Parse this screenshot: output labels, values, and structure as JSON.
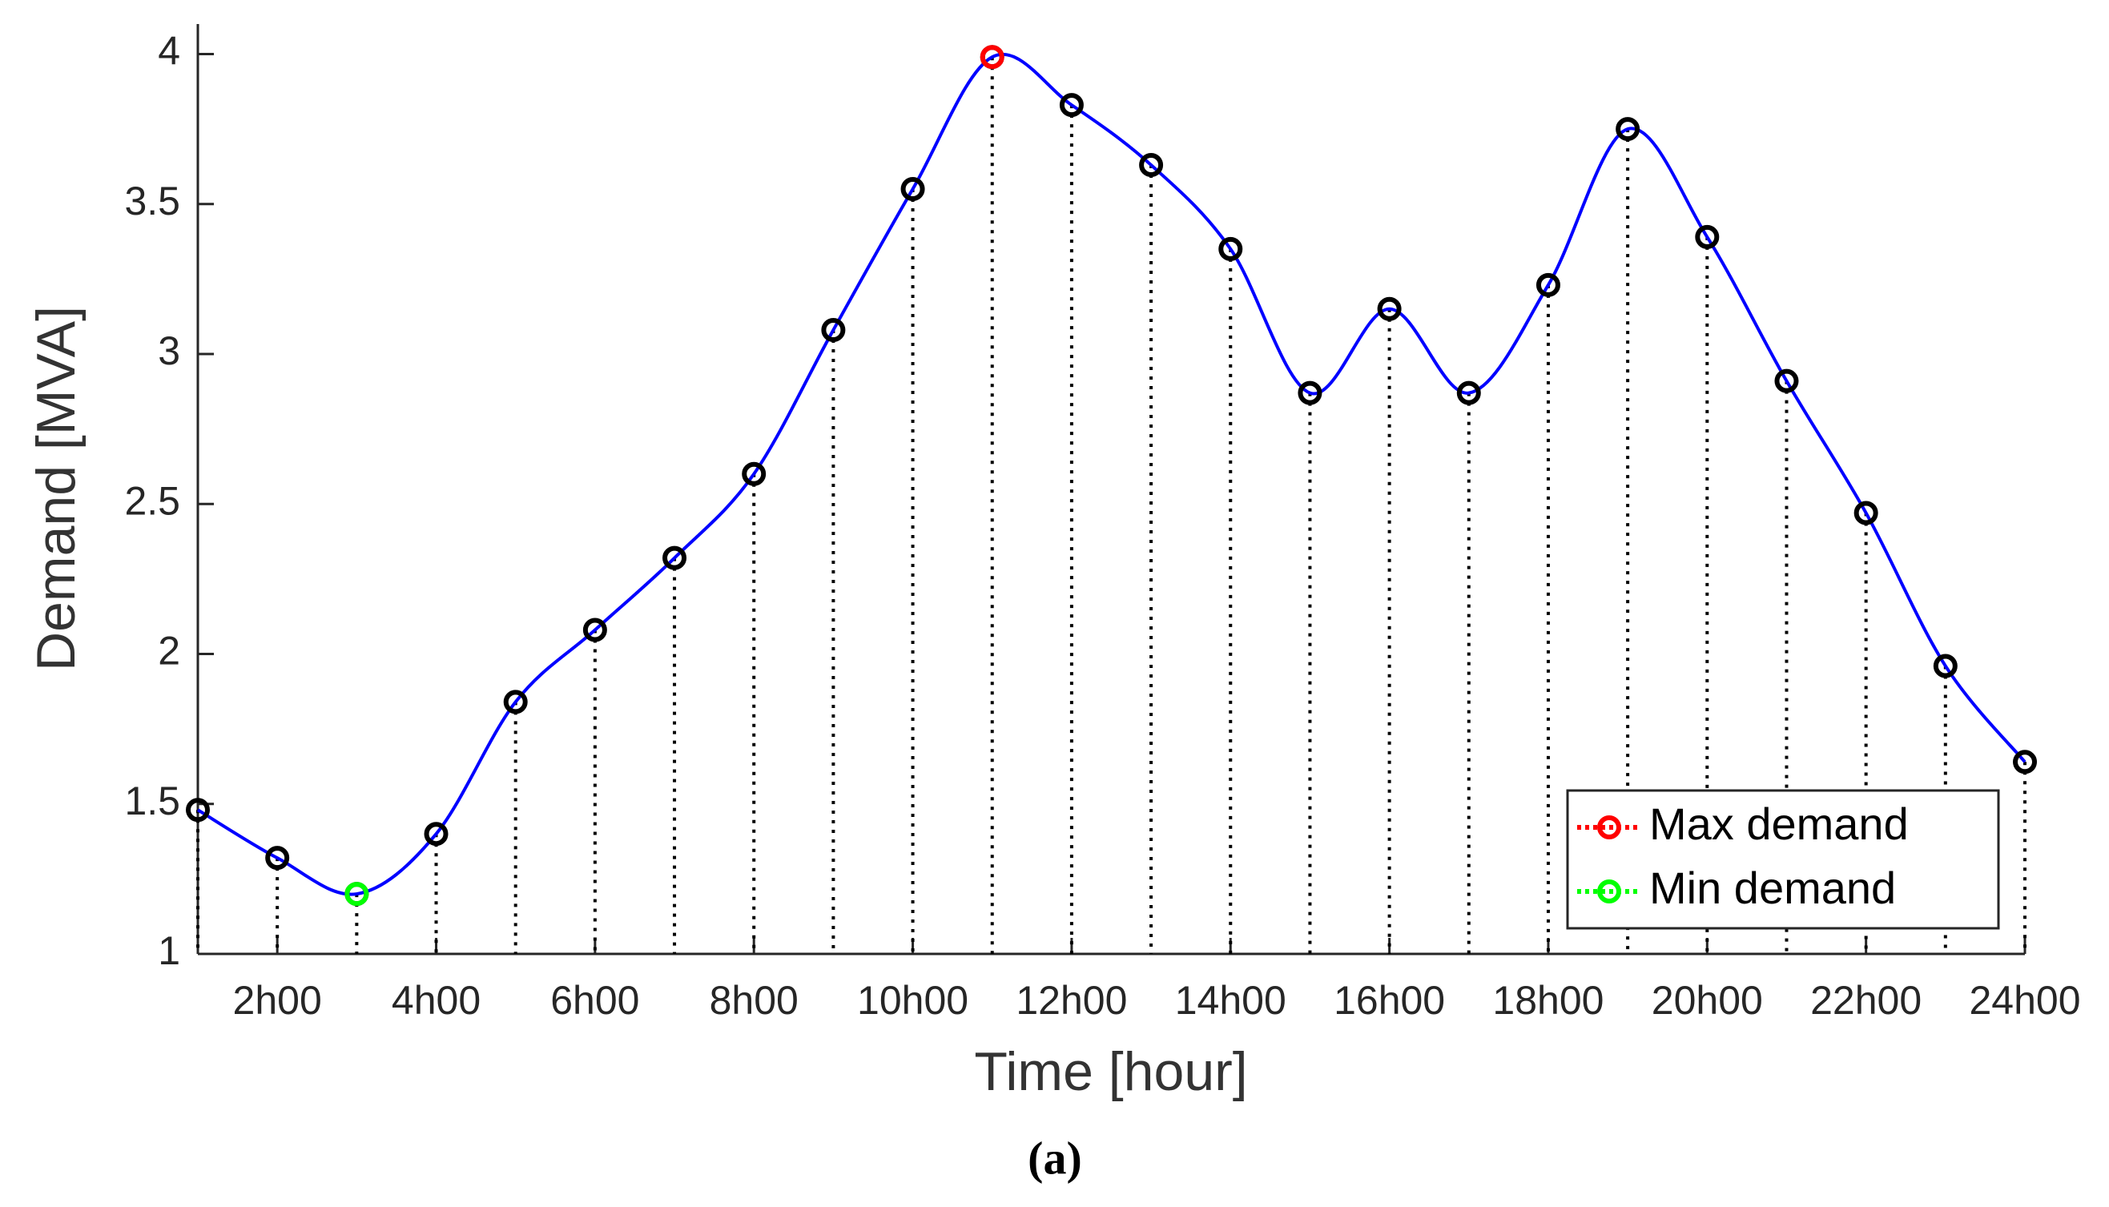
{
  "chart_data": {
    "type": "line",
    "x_label": "Time [hour]",
    "y_label": "Demand [MVA]",
    "caption": "(a)",
    "x": [
      1,
      2,
      3,
      4,
      5,
      6,
      7,
      8,
      9,
      10,
      11,
      12,
      13,
      14,
      15,
      16,
      17,
      18,
      19,
      20,
      21,
      22,
      23,
      24
    ],
    "series": [
      {
        "color": "#0000ff",
        "marker_color": "#000000",
        "stems": true,
        "values": [
          1.48,
          1.32,
          1.2,
          1.4,
          1.84,
          2.08,
          2.32,
          2.6,
          3.08,
          3.55,
          3.99,
          3.83,
          3.63,
          3.35,
          2.87,
          3.15,
          2.87,
          3.23,
          3.75,
          3.39,
          2.91,
          2.47,
          1.96,
          1.64
        ]
      },
      {
        "name": "Max demand",
        "color": "#ff0000",
        "x": [
          11
        ],
        "values": [
          3.99
        ]
      },
      {
        "name": "Min demand",
        "color": "#00ff00",
        "x": [
          3
        ],
        "values": [
          1.2
        ]
      }
    ],
    "xlim": [
      1,
      24
    ],
    "xticks": [
      {
        "value": 2,
        "label": "2h00"
      },
      {
        "value": 4,
        "label": "4h00"
      },
      {
        "value": 6,
        "label": "6h00"
      },
      {
        "value": 8,
        "label": "8h00"
      },
      {
        "value": 10,
        "label": "10h00"
      },
      {
        "value": 12,
        "label": "12h00"
      },
      {
        "value": 14,
        "label": "14h00"
      },
      {
        "value": 16,
        "label": "16h00"
      },
      {
        "value": 18,
        "label": "18h00"
      },
      {
        "value": 20,
        "label": "20h00"
      },
      {
        "value": 22,
        "label": "22h00"
      },
      {
        "value": 24,
        "label": "24h00"
      }
    ],
    "ylim": [
      1,
      4.1
    ],
    "yticks": [
      1,
      1.5,
      2,
      2.5,
      3,
      3.5,
      4
    ],
    "legend": "southeast"
  }
}
